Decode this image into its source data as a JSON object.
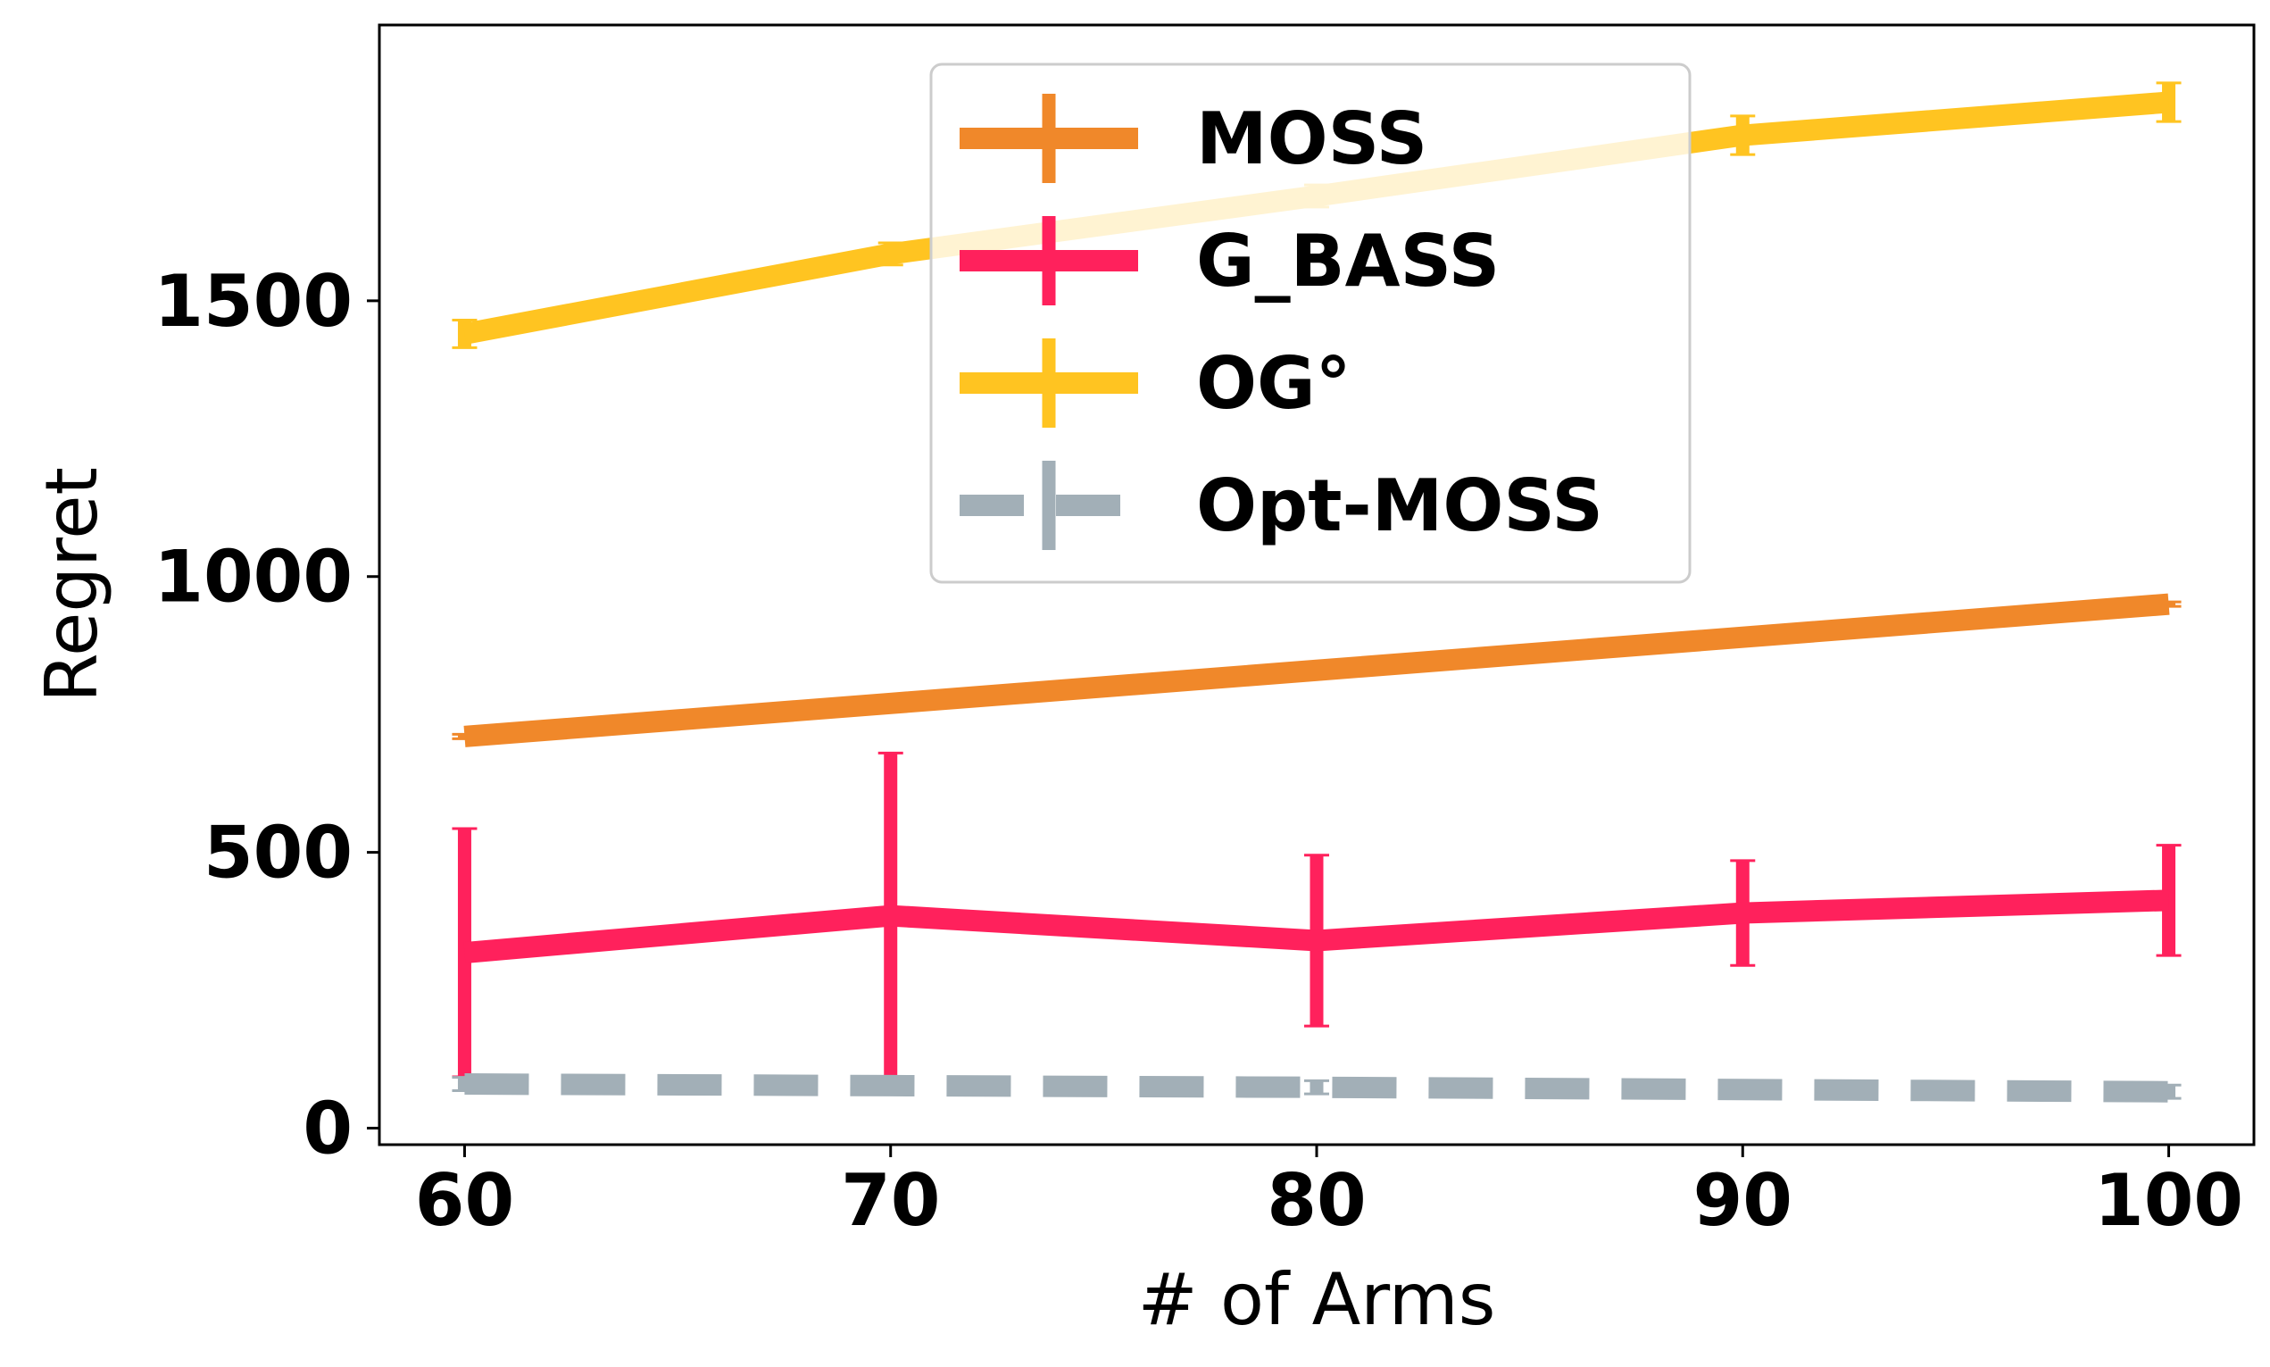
{
  "chart_data": {
    "type": "line",
    "title": "",
    "xlabel": "# of Arms",
    "ylabel": "Regret",
    "x": [
      60,
      70,
      80,
      90,
      100
    ],
    "xticks": [
      "60",
      "70",
      "80",
      "90",
      "100"
    ],
    "yticks": [
      "0",
      "500",
      "1000",
      "1500"
    ],
    "ytick_values": [
      0,
      500,
      1000,
      1500
    ],
    "xlim": [
      58,
      102
    ],
    "ylim": [
      -30,
      2000
    ],
    "grid": false,
    "legend_position": "top-center",
    "series": [
      {
        "name": "MOSS",
        "color": "#f0882a",
        "style": "solid",
        "values": [
          710,
          770,
          830,
          890,
          950
        ],
        "err": [
          4,
          4,
          4,
          4,
          4
        ]
      },
      {
        "name": "G_BASS",
        "color": "#ff215c",
        "style": "solid",
        "values": [
          318,
          385,
          340,
          390,
          413
        ],
        "err": [
          225,
          295,
          155,
          95,
          100
        ]
      },
      {
        "name": "OG°",
        "color": "#ffc421",
        "style": "solid",
        "values": [
          1440,
          1585,
          1690,
          1800,
          1860
        ],
        "err": [
          25,
          20,
          20,
          35,
          35
        ]
      },
      {
        "name": "Opt-MOSS",
        "color": "#a2afb7",
        "style": "dashed",
        "values": [
          80,
          77,
          74,
          70,
          66
        ],
        "err": [
          12,
          12,
          12,
          12,
          12
        ]
      }
    ]
  }
}
